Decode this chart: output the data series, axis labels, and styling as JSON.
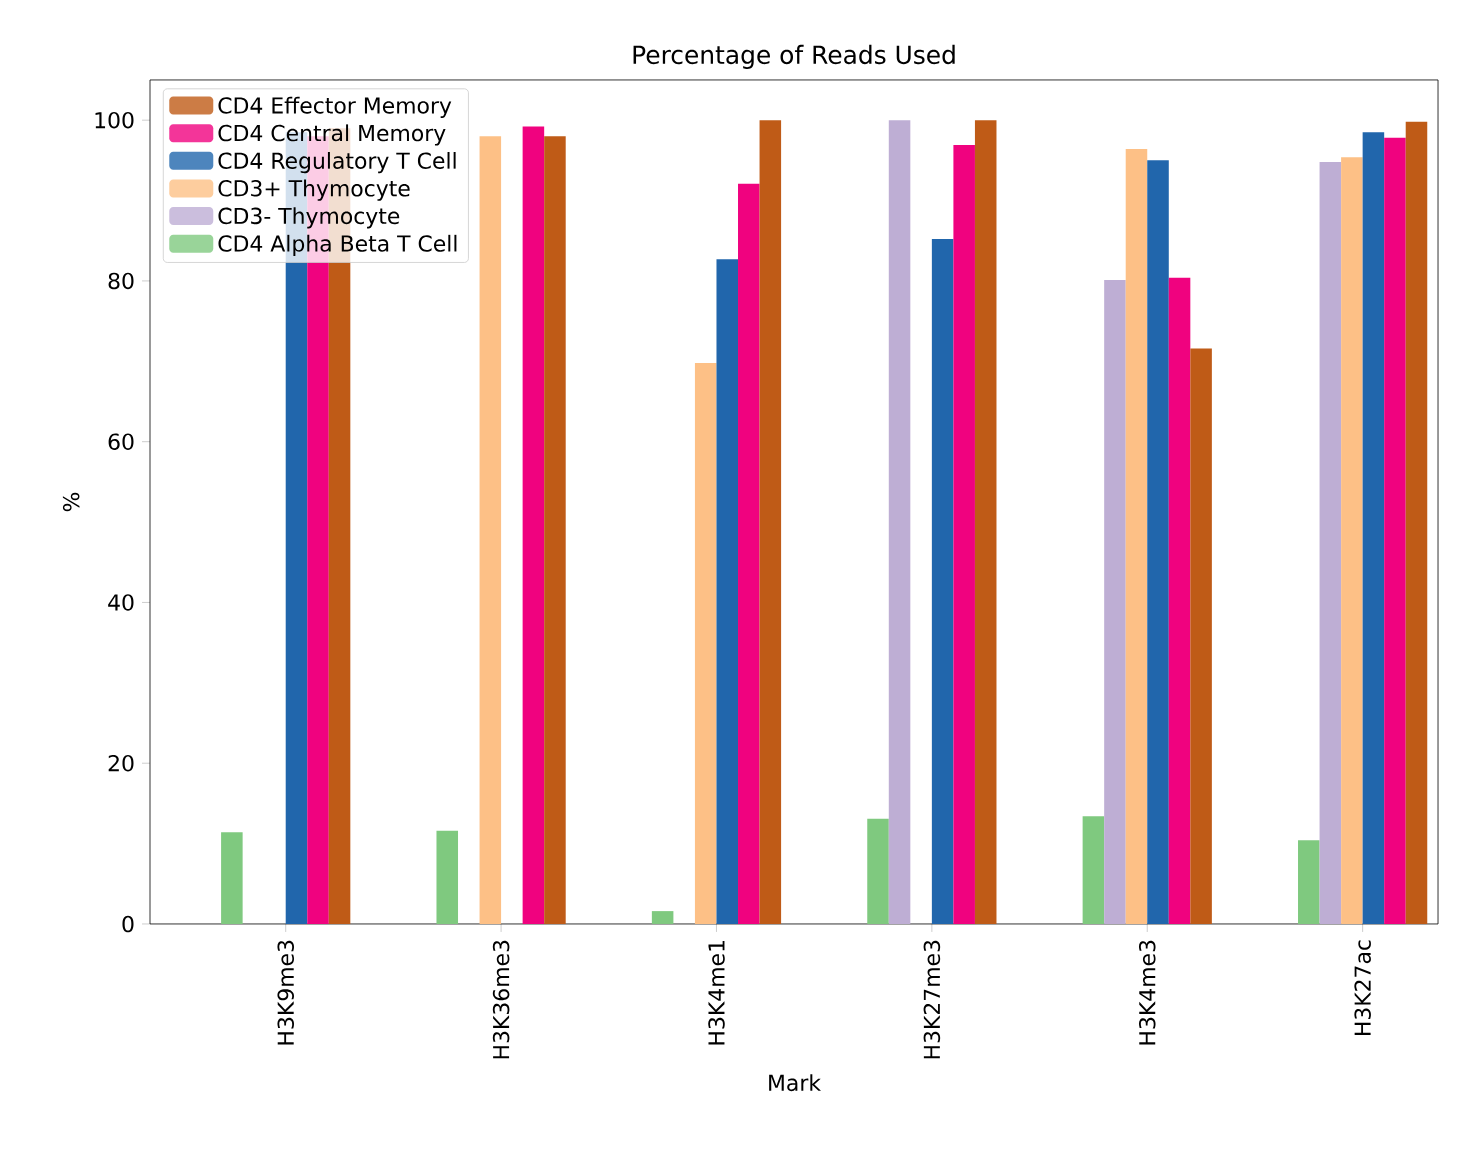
{
  "chart_data": {
    "type": "bar",
    "title": "Percentage of Reads Used",
    "xlabel": "Mark",
    "ylabel": "%",
    "categories": [
      "H3K9me3",
      "H3K36me3",
      "H3K4me1",
      "H3K27me3",
      "H3K4me3",
      "H3K27ac"
    ],
    "series": [
      {
        "name": "CD4 Alpha Beta T Cell",
        "color": "#7fc97f",
        "values": [
          11.4,
          11.6,
          1.6,
          13.1,
          13.4,
          10.4
        ]
      },
      {
        "name": "CD3- Thymocyte",
        "color": "#beaed4",
        "values": [
          0,
          0,
          0,
          100,
          80.1,
          94.8
        ]
      },
      {
        "name": "CD3+ Thymocyte",
        "color": "#fdc086",
        "values": [
          0,
          98,
          69.8,
          0,
          96.4,
          95.4
        ]
      },
      {
        "name": "CD4 Regulatory T Cell",
        "color": "#2166ac",
        "values": [
          98.5,
          0,
          82.7,
          85.2,
          95.0,
          98.5
        ]
      },
      {
        "name": "CD4 Central Memory",
        "color": "#f0027f",
        "values": [
          98,
          99.2,
          92.1,
          96.9,
          80.4,
          97.8
        ]
      },
      {
        "name": "CD4 Effector Memory",
        "color": "#bf5b17",
        "values": [
          99,
          98,
          100,
          100,
          71.6,
          99.8
        ]
      }
    ],
    "ylim": [
      0,
      105
    ],
    "yticks": [
      0,
      20,
      40,
      60,
      80,
      100
    ],
    "legend": "top left",
    "grid": false
  }
}
